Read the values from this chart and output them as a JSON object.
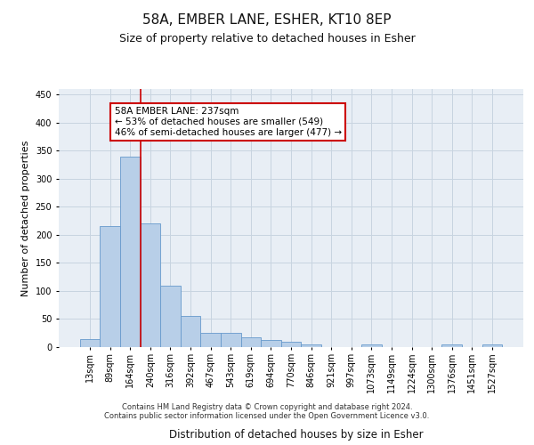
{
  "title": "58A, EMBER LANE, ESHER, KT10 8EP",
  "subtitle": "Size of property relative to detached houses in Esher",
  "xlabel": "Distribution of detached houses by size in Esher",
  "ylabel": "Number of detached properties",
  "categories": [
    "13sqm",
    "89sqm",
    "164sqm",
    "240sqm",
    "316sqm",
    "392sqm",
    "467sqm",
    "543sqm",
    "619sqm",
    "694sqm",
    "770sqm",
    "846sqm",
    "921sqm",
    "997sqm",
    "1073sqm",
    "1149sqm",
    "1224sqm",
    "1300sqm",
    "1376sqm",
    "1451sqm",
    "1527sqm"
  ],
  "values": [
    15,
    215,
    340,
    220,
    110,
    55,
    25,
    25,
    18,
    12,
    10,
    5,
    0,
    0,
    5,
    0,
    0,
    0,
    5,
    0,
    5
  ],
  "bar_color": "#b8cfe8",
  "bar_edge_color": "#6699cc",
  "grid_color": "#c8d4e0",
  "background_color": "#e8eef5",
  "vline_color": "#cc0000",
  "vline_x": 2.5,
  "annotation_text": "58A EMBER LANE: 237sqm\n← 53% of detached houses are smaller (549)\n46% of semi-detached houses are larger (477) →",
  "annotation_box_facecolor": "#ffffff",
  "annotation_box_edgecolor": "#cc0000",
  "footer": "Contains HM Land Registry data © Crown copyright and database right 2024.\nContains public sector information licensed under the Open Government Licence v3.0.",
  "title_fontsize": 11,
  "subtitle_fontsize": 9,
  "xlabel_fontsize": 8.5,
  "ylabel_fontsize": 8,
  "tick_fontsize": 7,
  "annot_fontsize": 7.5,
  "footer_fontsize": 6,
  "ylim": [
    0,
    460
  ]
}
